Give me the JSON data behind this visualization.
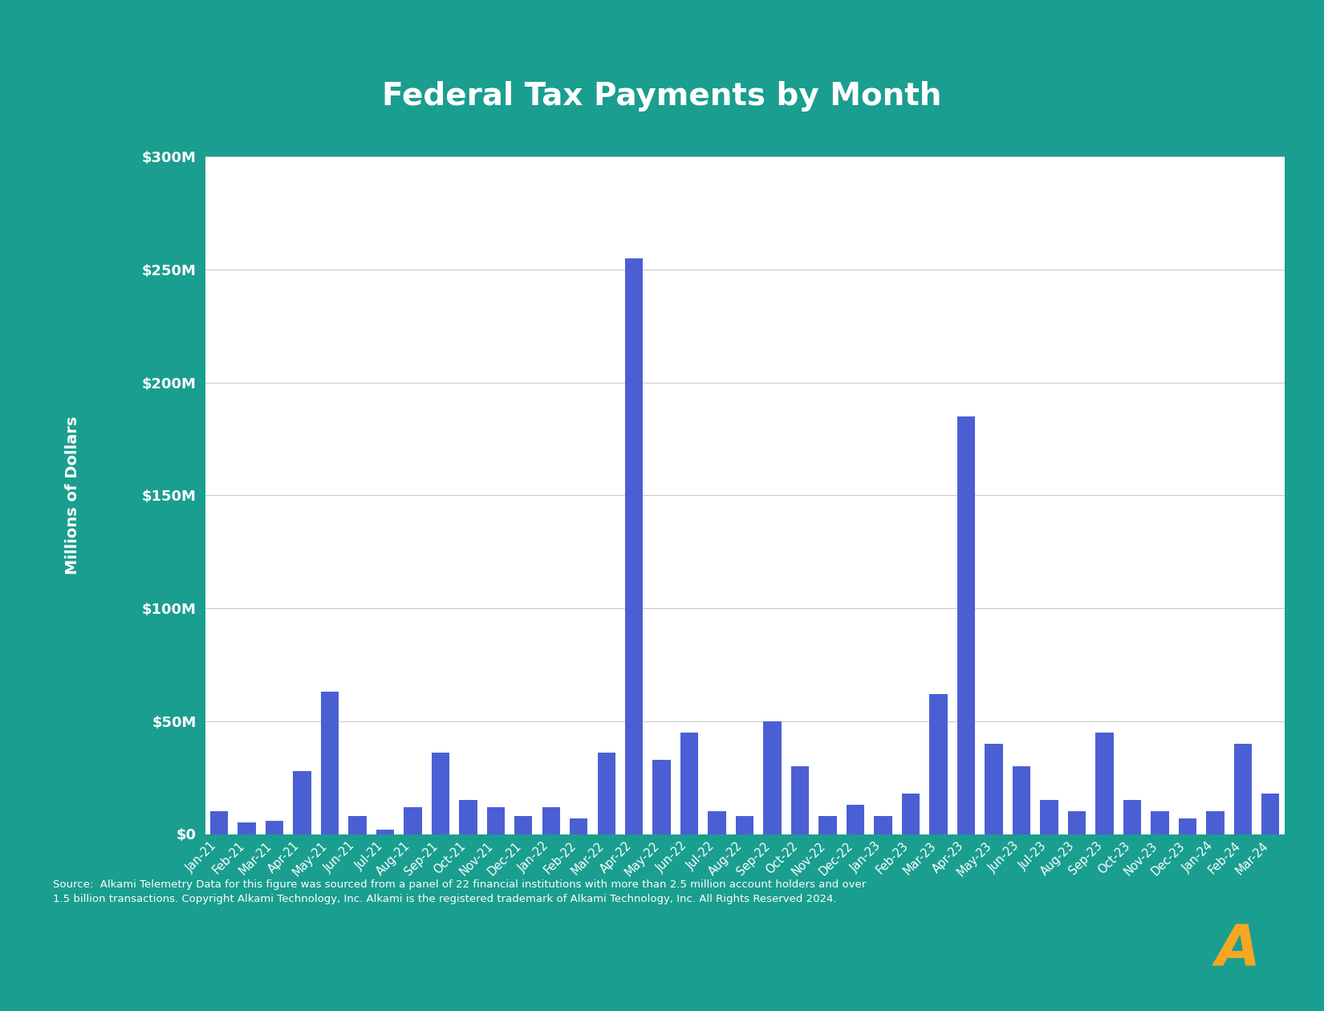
{
  "title": "Federal Tax Payments by Month",
  "ylabel": "Millions of Dollars",
  "bar_color": "#4B5FD5",
  "chart_bg_color": "#FFFFFF",
  "outer_bg_color": "#1A9E8F",
  "title_color": "#FFFFFF",
  "axis_label_color": "#FFFFFF",
  "tick_label_color": "#FFFFFF",
  "grid_color": "#CCCCCC",
  "categories": [
    "Jan-21",
    "Feb-21",
    "Mar-21",
    "Apr-21",
    "May-21",
    "Jun-21",
    "Jul-21",
    "Aug-21",
    "Sep-21",
    "Oct-21",
    "Nov-21",
    "Dec-21",
    "Jan-22",
    "Feb-22",
    "Mar-22",
    "Apr-22",
    "May-22",
    "Jun-22",
    "Jul-22",
    "Aug-22",
    "Sep-22",
    "Oct-22",
    "Nov-22",
    "Dec-22",
    "Jan-23",
    "Feb-23",
    "Mar-23",
    "Apr-23",
    "May-23",
    "Jun-23",
    "Jul-23",
    "Aug-23",
    "Sep-23",
    "Oct-23",
    "Nov-23",
    "Dec-23",
    "Jan-24",
    "Feb-24",
    "Mar-24"
  ],
  "values": [
    10,
    5,
    6,
    28,
    63,
    8,
    2,
    12,
    36,
    15,
    12,
    8,
    12,
    7,
    36,
    255,
    33,
    45,
    10,
    8,
    50,
    30,
    8,
    13,
    8,
    18,
    62,
    185,
    40,
    30,
    15,
    10,
    45,
    15,
    10,
    7,
    10,
    40,
    18
  ],
  "ylim": [
    0,
    300
  ],
  "yticks": [
    0,
    50,
    100,
    150,
    200,
    250,
    300
  ],
  "ytick_labels": [
    "$0",
    "$50M",
    "$100M",
    "$150M",
    "$200M",
    "$250M",
    "$300M"
  ],
  "footer_text": "Source:  Alkami Telemetry Data for this figure was sourced from a panel of 22 financial institutions with more than 2.5 million account holders and over\n1.5 billion transactions. Copyright Alkami Technology, Inc. Alkami is the registered trademark of Alkami Technology, Inc. All Rights Reserved 2024.",
  "footer_color": "#FFFFFF",
  "logo_color": "#F5A623"
}
